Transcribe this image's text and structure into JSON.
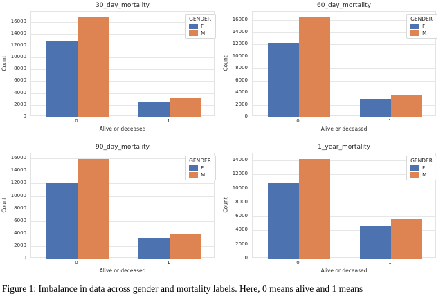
{
  "caption": "Figure 1: Imbalance in data across gender and mortality labels. Here, 0 means alive and 1 means",
  "colors": {
    "F": "#4c72b0",
    "M": "#dd8452",
    "grid": "#e6e6e6",
    "text": "#262626"
  },
  "legend": {
    "title": "GENDER",
    "entries": [
      "F",
      "M"
    ]
  },
  "chart_data": [
    {
      "type": "bar",
      "title": "30_day_mortality",
      "xlabel": "Alive or deceased",
      "ylabel": "Count",
      "categories": [
        "0",
        "1"
      ],
      "series": [
        {
          "name": "F",
          "values": [
            12700,
            2600
          ]
        },
        {
          "name": "M",
          "values": [
            16800,
            3100
          ]
        }
      ],
      "yticks": [
        0,
        2000,
        4000,
        6000,
        8000,
        10000,
        12000,
        14000,
        16000
      ],
      "ylim": [
        0,
        17700
      ],
      "grid": true,
      "legend_title": "GENDER",
      "legend_position": "upper right"
    },
    {
      "type": "bar",
      "title": "60_day_mortality",
      "xlabel": "Alive or deceased",
      "ylabel": "Count",
      "categories": [
        "0",
        "1"
      ],
      "series": [
        {
          "name": "F",
          "values": [
            12300,
            3000
          ]
        },
        {
          "name": "M",
          "values": [
            16500,
            3500
          ]
        }
      ],
      "yticks": [
        0,
        2000,
        4000,
        6000,
        8000,
        10000,
        12000,
        14000,
        16000
      ],
      "ylim": [
        0,
        17400
      ],
      "grid": true,
      "legend_title": "GENDER",
      "legend_position": "upper right"
    },
    {
      "type": "bar",
      "title": "90_day_mortality",
      "xlabel": "Alive or deceased",
      "ylabel": "Count",
      "categories": [
        "0",
        "1"
      ],
      "series": [
        {
          "name": "F",
          "values": [
            12100,
            3200
          ]
        },
        {
          "name": "M",
          "values": [
            15900,
            3900
          ]
        }
      ],
      "yticks": [
        0,
        2000,
        4000,
        6000,
        8000,
        10000,
        12000,
        14000,
        16000
      ],
      "ylim": [
        0,
        16800
      ],
      "grid": true,
      "legend_title": "GENDER",
      "legend_position": "upper right"
    },
    {
      "type": "bar",
      "title": "1_year_mortality",
      "xlabel": "Alive or deceased",
      "ylabel": "Count",
      "categories": [
        "0",
        "1"
      ],
      "series": [
        {
          "name": "F",
          "values": [
            10800,
            4600
          ]
        },
        {
          "name": "M",
          "values": [
            14200,
            5600
          ]
        }
      ],
      "yticks": [
        0,
        2000,
        4000,
        6000,
        8000,
        10000,
        12000,
        14000
      ],
      "ylim": [
        0,
        15000
      ],
      "grid": true,
      "legend_title": "GENDER",
      "legend_position": "upper right"
    }
  ]
}
